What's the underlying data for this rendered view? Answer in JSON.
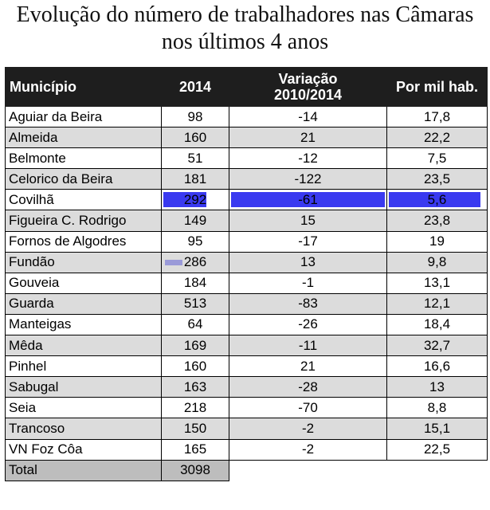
{
  "title_line1": "Evolução do número de trabalhadores nas Câmaras",
  "title_line2": "nos últimos 4 anos",
  "chart_data": {
    "type": "table",
    "columns": [
      "Município",
      "2014",
      "Variação 2010/2014",
      "Por mil hab."
    ],
    "column_header_lines": {
      "variacao": [
        "Variação",
        "2010/2014"
      ]
    },
    "rows": [
      {
        "municipio": "Aguiar da Beira",
        "y2014": "98",
        "variacao": "-14",
        "por_mil": "17,8"
      },
      {
        "municipio": "Almeida",
        "y2014": "160",
        "variacao": "21",
        "por_mil": "22,2"
      },
      {
        "municipio": "Belmonte",
        "y2014": "51",
        "variacao": "-12",
        "por_mil": "7,5"
      },
      {
        "municipio": "Celorico da Beira",
        "y2014": "181",
        "variacao": "-122",
        "por_mil": "23,5"
      },
      {
        "municipio": "Covilhã",
        "y2014": "292",
        "variacao": "-61",
        "por_mil": "5,6"
      },
      {
        "municipio": "Figueira C. Rodrigo",
        "y2014": "149",
        "variacao": "15",
        "por_mil": "23,8"
      },
      {
        "municipio": "Fornos de Algodres",
        "y2014": "95",
        "variacao": "-17",
        "por_mil": "19"
      },
      {
        "municipio": "Fundão",
        "y2014": "286",
        "variacao": "13",
        "por_mil": "9,8"
      },
      {
        "municipio": "Gouveia",
        "y2014": "184",
        "variacao": "-1",
        "por_mil": "13,1"
      },
      {
        "municipio": "Guarda",
        "y2014": "513",
        "variacao": "-83",
        "por_mil": "12,1"
      },
      {
        "municipio": "Manteigas",
        "y2014": "64",
        "variacao": "-26",
        "por_mil": "18,4"
      },
      {
        "municipio": "Mêda",
        "y2014": "169",
        "variacao": "-11",
        "por_mil": "32,7"
      },
      {
        "municipio": "Pinhel",
        "y2014": "160",
        "variacao": "21",
        "por_mil": "16,6"
      },
      {
        "municipio": "Sabugal",
        "y2014": "163",
        "variacao": "-28",
        "por_mil": "13"
      },
      {
        "municipio": "Seia",
        "y2014": "218",
        "variacao": "-70",
        "por_mil": "8,8"
      },
      {
        "municipio": "Trancoso",
        "y2014": "150",
        "variacao": "-2",
        "por_mil": "15,1"
      },
      {
        "municipio": "VN Foz Côa",
        "y2014": "165",
        "variacao": "-2",
        "por_mil": "22,5"
      }
    ],
    "total": {
      "label": "Total",
      "y2014": "3098"
    },
    "colors": {
      "header_bg": "#1e1e1e",
      "alt_row_bg": "#dcdcdc",
      "total_bg": "#bdbdbd",
      "highlight": "#3a3af0"
    }
  }
}
